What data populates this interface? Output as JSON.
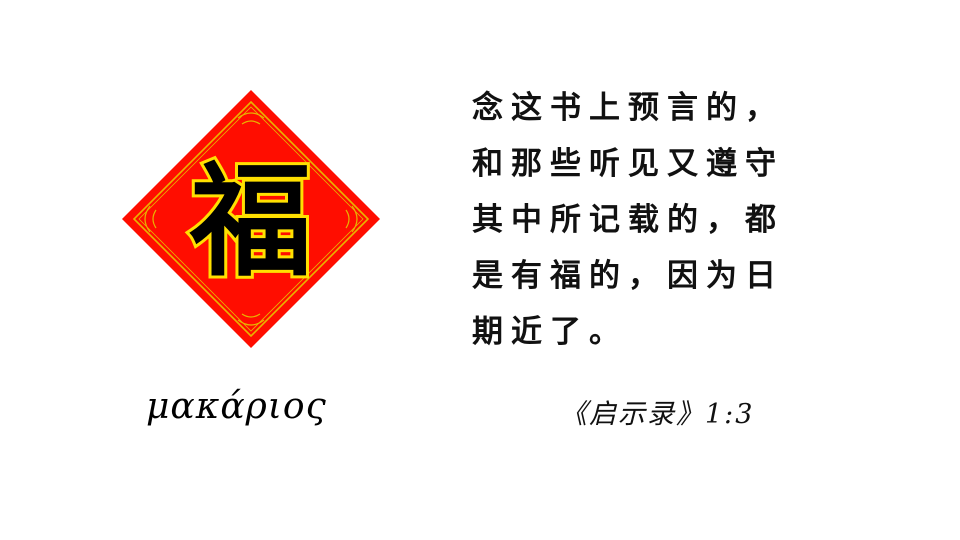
{
  "emblem": {
    "character": "福",
    "colors": {
      "background": "#ff0d00",
      "border": "#e8b400",
      "character_fill": "#000000",
      "character_outline": "#ffe000"
    }
  },
  "greek_word": "μακάριος",
  "verse": {
    "lines": [
      "念这书上预言的，",
      "和那些听见又遵守",
      "其中所记载的，都",
      "是有福的，因为日",
      "期近了。"
    ]
  },
  "citation": "《启示录》1:3"
}
